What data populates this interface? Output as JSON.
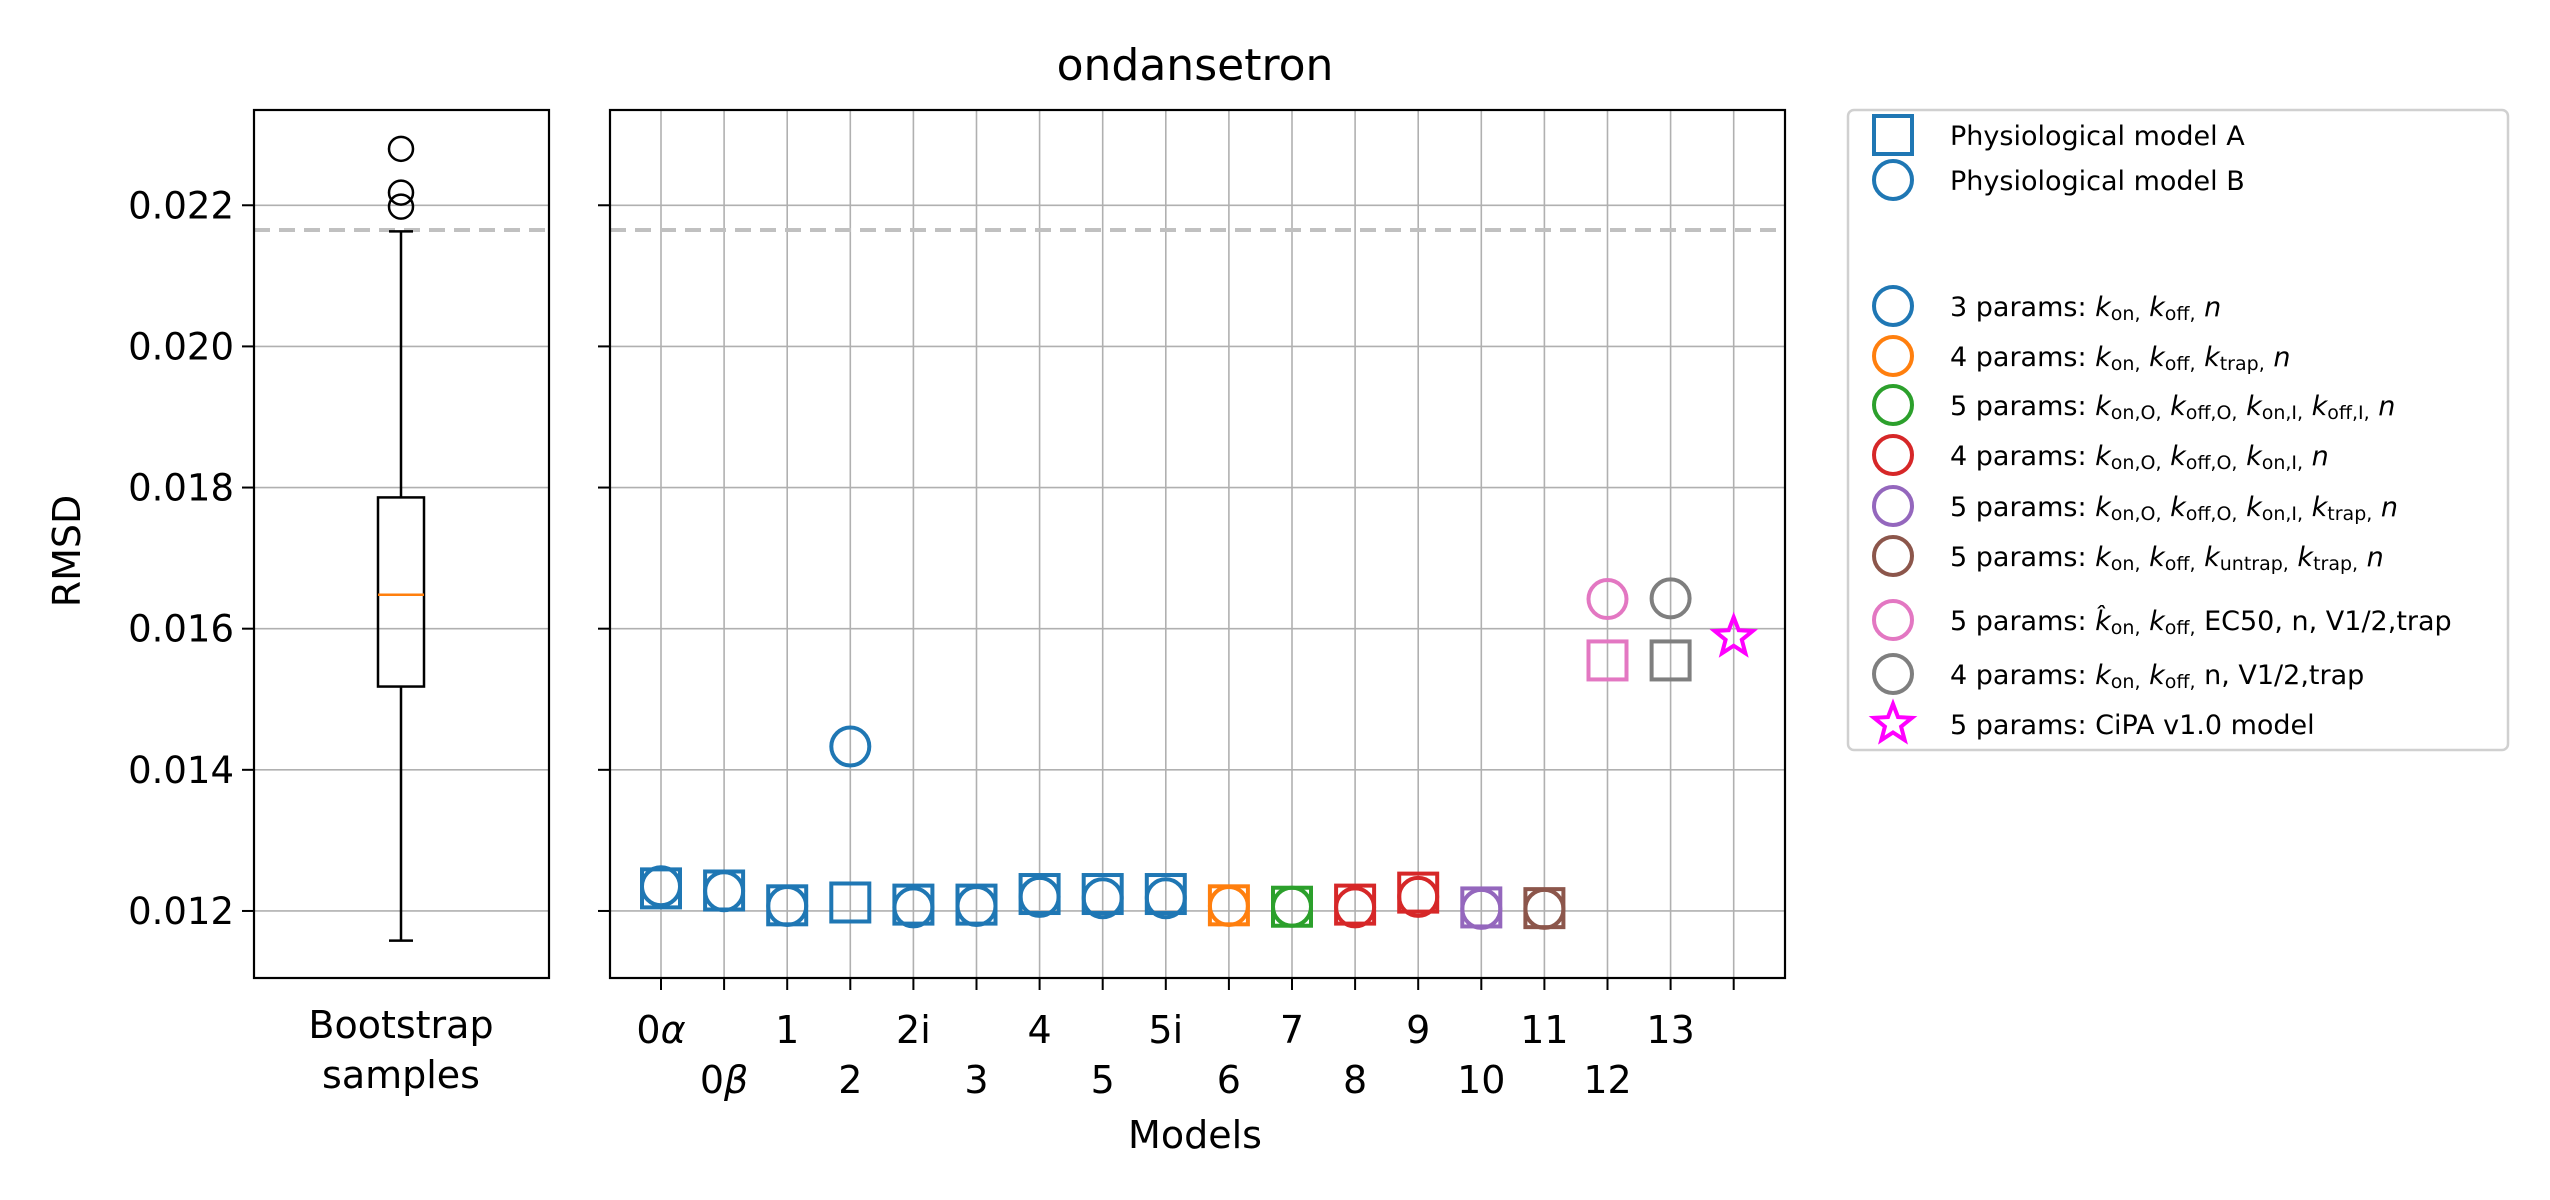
{
  "chart_data": {
    "type": "scatter",
    "title": "ondansetron",
    "ylabel": "RMSD",
    "xlabel": "Models",
    "ylim": [
      0.01105,
      0.02335
    ],
    "y_ticks": [
      0.012,
      0.014,
      0.016,
      0.018,
      0.02,
      0.022
    ],
    "y_tick_labels": [
      "0.012",
      "0.014",
      "0.016",
      "0.018",
      "0.020",
      "0.022"
    ],
    "reference_line": {
      "y": 0.02165,
      "style": "dashed",
      "color": "#c0c0c0"
    },
    "grid": true,
    "legend_position": "outside-right",
    "boxplot": {
      "label_line1": "Bootstrap",
      "label_line2": "samples",
      "q1": 0.01518,
      "median": 0.01648,
      "q3": 0.01786,
      "whisker_low": 0.01158,
      "whisker_high": 0.02163,
      "outliers": [
        0.0228,
        0.02218,
        0.02198
      ],
      "box_color": "#000000",
      "median_color": "#ff7f0e"
    },
    "x_ticks": [
      {
        "label": "0α",
        "row": 1
      },
      {
        "label": "0β",
        "row": 2
      },
      {
        "label": "1",
        "row": 1
      },
      {
        "label": "2",
        "row": 2
      },
      {
        "label": "2i",
        "row": 1
      },
      {
        "label": "3",
        "row": 2
      },
      {
        "label": "4",
        "row": 1
      },
      {
        "label": "5",
        "row": 2
      },
      {
        "label": "5i",
        "row": 1
      },
      {
        "label": "6",
        "row": 2
      },
      {
        "label": "7",
        "row": 1
      },
      {
        "label": "8",
        "row": 2
      },
      {
        "label": "9",
        "row": 1
      },
      {
        "label": "10",
        "row": 2
      },
      {
        "label": "11",
        "row": 1
      },
      {
        "label": "12",
        "row": 2
      },
      {
        "label": "13",
        "row": 1
      },
      {
        "label": "",
        "row": 2
      }
    ],
    "points": [
      {
        "x": 0,
        "marker": "square",
        "color": "#1f77b4",
        "y": 0.01232
      },
      {
        "x": 0,
        "marker": "circle",
        "color": "#1f77b4",
        "y": 0.01235
      },
      {
        "x": 1,
        "marker": "square",
        "color": "#1f77b4",
        "y": 0.01229
      },
      {
        "x": 1,
        "marker": "circle",
        "color": "#1f77b4",
        "y": 0.01228
      },
      {
        "x": 2,
        "marker": "square",
        "color": "#1f77b4",
        "y": 0.01208
      },
      {
        "x": 2,
        "marker": "circle",
        "color": "#1f77b4",
        "y": 0.01207
      },
      {
        "x": 3,
        "marker": "square",
        "color": "#1f77b4",
        "y": 0.01212
      },
      {
        "x": 3,
        "marker": "circle",
        "color": "#1f77b4",
        "y": 0.01433
      },
      {
        "x": 4,
        "marker": "square",
        "color": "#1f77b4",
        "y": 0.01209
      },
      {
        "x": 4,
        "marker": "circle",
        "color": "#1f77b4",
        "y": 0.01205
      },
      {
        "x": 5,
        "marker": "square",
        "color": "#1f77b4",
        "y": 0.01209
      },
      {
        "x": 5,
        "marker": "circle",
        "color": "#1f77b4",
        "y": 0.01207
      },
      {
        "x": 6,
        "marker": "square",
        "color": "#1f77b4",
        "y": 0.01224
      },
      {
        "x": 6,
        "marker": "circle",
        "color": "#1f77b4",
        "y": 0.0122
      },
      {
        "x": 7,
        "marker": "square",
        "color": "#1f77b4",
        "y": 0.01224
      },
      {
        "x": 7,
        "marker": "circle",
        "color": "#1f77b4",
        "y": 0.01218
      },
      {
        "x": 8,
        "marker": "square",
        "color": "#1f77b4",
        "y": 0.01224
      },
      {
        "x": 8,
        "marker": "circle",
        "color": "#1f77b4",
        "y": 0.01218
      },
      {
        "x": 9,
        "marker": "square",
        "color": "#ff7f0e",
        "y": 0.01208
      },
      {
        "x": 9,
        "marker": "circle",
        "color": "#ff7f0e",
        "y": 0.01207
      },
      {
        "x": 10,
        "marker": "square",
        "color": "#2ca02c",
        "y": 0.01206
      },
      {
        "x": 10,
        "marker": "circle",
        "color": "#2ca02c",
        "y": 0.01206
      },
      {
        "x": 11,
        "marker": "square",
        "color": "#d62728",
        "y": 0.01209
      },
      {
        "x": 11,
        "marker": "circle",
        "color": "#d62728",
        "y": 0.01205
      },
      {
        "x": 12,
        "marker": "square",
        "color": "#d62728",
        "y": 0.01226
      },
      {
        "x": 12,
        "marker": "circle",
        "color": "#d62728",
        "y": 0.0122
      },
      {
        "x": 13,
        "marker": "square",
        "color": "#9467bd",
        "y": 0.01205
      },
      {
        "x": 13,
        "marker": "circle",
        "color": "#9467bd",
        "y": 0.01203
      },
      {
        "x": 14,
        "marker": "square",
        "color": "#8c564b",
        "y": 0.01204
      },
      {
        "x": 14,
        "marker": "circle",
        "color": "#8c564b",
        "y": 0.01203
      },
      {
        "x": 15,
        "marker": "square",
        "color": "#e377c2",
        "y": 0.01555
      },
      {
        "x": 15,
        "marker": "circle",
        "color": "#e377c2",
        "y": 0.01642
      },
      {
        "x": 16,
        "marker": "square",
        "color": "#7f7f7f",
        "y": 0.01555
      },
      {
        "x": 16,
        "marker": "circle",
        "color": "#7f7f7f",
        "y": 0.01643
      },
      {
        "x": 17,
        "marker": "star",
        "color": "#ff00ff",
        "y": 0.01588
      }
    ],
    "legend": [
      {
        "marker": "square",
        "color": "#1f77b4",
        "text": "Physiological model A"
      },
      {
        "marker": "circle",
        "color": "#1f77b4",
        "text": "Physiological model B"
      },
      {
        "marker": "none",
        "color": "",
        "text": ""
      },
      {
        "marker": "circle",
        "color": "#1f77b4",
        "text": "3 params: k_on, k_off, n"
      },
      {
        "marker": "circle",
        "color": "#ff7f0e",
        "text": "4 params: k_on, k_off, k_trap, n"
      },
      {
        "marker": "circle",
        "color": "#2ca02c",
        "text": "5 params: k_on,O, k_off,O, k_on,I, k_off,I, n"
      },
      {
        "marker": "circle",
        "color": "#d62728",
        "text": "4 params: k_on,O, k_off,O, k_on,I, n"
      },
      {
        "marker": "circle",
        "color": "#9467bd",
        "text": "5 params: k_on,O, k_off,O, k_on,I, k_trap, n"
      },
      {
        "marker": "circle",
        "color": "#8c564b",
        "text": "5 params: k_on, k_off, k_untrap, k_trap, n"
      },
      {
        "marker": "circle",
        "color": "#e377c2",
        "text": "5 params: k̂_on, k_off, EC50, n, V1/2,trap"
      },
      {
        "marker": "circle",
        "color": "#7f7f7f",
        "text": "4 params: k_on, k_off, n, V1/2,trap"
      },
      {
        "marker": "star",
        "color": "#ff00ff",
        "text": "5 params: CiPA v1.0 model"
      }
    ]
  }
}
